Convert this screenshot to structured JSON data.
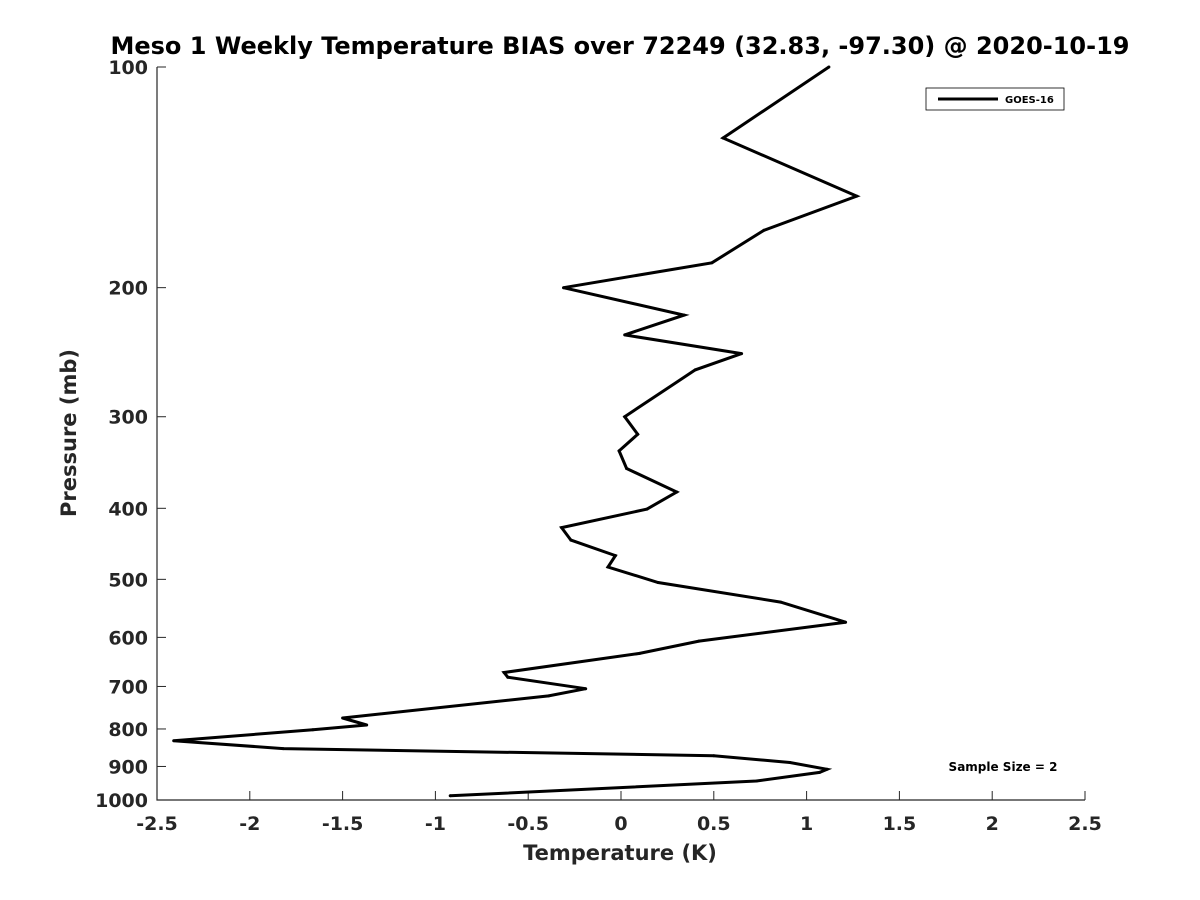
{
  "chart_data": {
    "type": "line",
    "title": "Meso 1 Weekly Temperature BIAS over 72249 (32.83, -97.30) @ 2020-10-19",
    "xlabel": "Temperature (K)",
    "ylabel": "Pressure (mb)",
    "xlim": [
      -2.5,
      2.5
    ],
    "ylim": [
      100,
      1000
    ],
    "y_scale": "log",
    "y_reversed": true,
    "xticks": [
      -2.5,
      -2,
      -1.5,
      -1,
      -0.5,
      0,
      0.5,
      1,
      1.5,
      2,
      2.5
    ],
    "xtick_labels": [
      "-2.5",
      "-2",
      "-1.5",
      "-1",
      "-0.5",
      "0",
      "0.5",
      "1",
      "1.5",
      "2",
      "2.5"
    ],
    "yticks": [
      100,
      200,
      300,
      400,
      500,
      600,
      700,
      800,
      900,
      1000
    ],
    "ytick_labels": [
      "100",
      "200",
      "300",
      "400",
      "500",
      "600",
      "700",
      "800",
      "900",
      "1000"
    ],
    "grid": false,
    "legend": {
      "placement": "top-right",
      "entries": [
        "GOES-16"
      ]
    },
    "annotation": "Sample Size = 2",
    "color": "#000000",
    "series": [
      {
        "name": "GOES-16",
        "points": [
          [
            1.12,
            100
          ],
          [
            0.55,
            125
          ],
          [
            1.27,
            150
          ],
          [
            0.77,
            167
          ],
          [
            0.49,
            185
          ],
          [
            -0.31,
            200
          ],
          [
            0.34,
            218
          ],
          [
            0.02,
            232
          ],
          [
            0.65,
            246
          ],
          [
            0.4,
            259
          ],
          [
            0.02,
            300
          ],
          [
            0.09,
            317
          ],
          [
            -0.01,
            334
          ],
          [
            0.03,
            353
          ],
          [
            0.3,
            380
          ],
          [
            0.14,
            401
          ],
          [
            -0.32,
            425
          ],
          [
            -0.27,
            442
          ],
          [
            -0.03,
            464
          ],
          [
            -0.07,
            481
          ],
          [
            0.2,
            505
          ],
          [
            0.86,
            537
          ],
          [
            1.21,
            572
          ],
          [
            0.42,
            607
          ],
          [
            0.1,
            631
          ],
          [
            -0.63,
            670
          ],
          [
            -0.61,
            680
          ],
          [
            -0.19,
            705
          ],
          [
            -0.39,
            721
          ],
          [
            -1.5,
            773
          ],
          [
            -1.37,
            790
          ],
          [
            -1.66,
            802
          ],
          [
            -2.41,
            830
          ],
          [
            -1.82,
            851
          ],
          [
            0.5,
            870
          ],
          [
            0.91,
            889
          ],
          [
            1.11,
            908
          ],
          [
            1.07,
            917
          ],
          [
            0.73,
            942
          ],
          [
            -0.92,
            987
          ]
        ]
      }
    ]
  }
}
